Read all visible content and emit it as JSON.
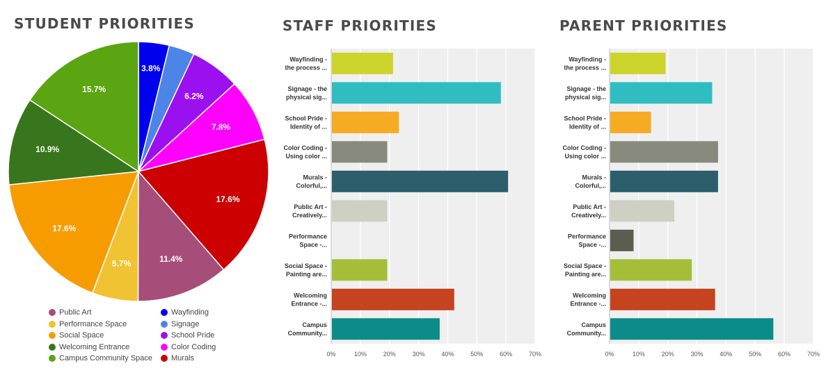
{
  "titles": {
    "student": "STUDENT PRIORITIES",
    "staff": "STAFF PRIORITIES",
    "parent": "PARENT PRIORITIES"
  },
  "chart_data": [
    {
      "type": "pie",
      "title": "STUDENT PRIORITIES",
      "slices": [
        {
          "name": "Wayfinding",
          "value": 3.8,
          "label": "3.8%",
          "color": "#0000ee"
        },
        {
          "name": "Signage",
          "value": 3.2,
          "label": "",
          "color": "#4d84e8"
        },
        {
          "name": "School Pride",
          "value": 6.2,
          "label": "6.2%",
          "color": "#9b10ef"
        },
        {
          "name": "Color Coding",
          "value": 7.8,
          "label": "7.8%",
          "color": "#ff00ff"
        },
        {
          "name": "Murals",
          "value": 17.6,
          "label": "17.6%",
          "color": "#cc0000"
        },
        {
          "name": "Public Art",
          "value": 11.4,
          "label": "11.4%",
          "color": "#a64d79"
        },
        {
          "name": "Performance Space",
          "value": 5.7,
          "label": "5.7%",
          "color": "#f1c232"
        },
        {
          "name": "Social Space",
          "value": 17.6,
          "label": "17.6%",
          "color": "#f79c00"
        },
        {
          "name": "Welcoming Entrance",
          "value": 10.9,
          "label": "10.9%",
          "color": "#38761d"
        },
        {
          "name": "Campus Community Space",
          "value": 15.7,
          "label": "15.7%",
          "color": "#5aa511"
        }
      ],
      "legend": [
        [
          "Public Art",
          "Performance Space",
          "Social Space",
          "Welcoming Entrance",
          "Campus Community Space"
        ],
        [
          "Wayfinding",
          "Signage",
          "School Pride",
          "Color Coding",
          "Murals"
        ]
      ],
      "legend_position": "bottom"
    },
    {
      "type": "bar",
      "orientation": "horizontal",
      "title": "STAFF PRIORITIES",
      "categories": [
        [
          "Wayfinding -",
          "the process ..."
        ],
        [
          "Signage - the",
          "physical sig..."
        ],
        [
          "School Pride -",
          "Identity of ..."
        ],
        [
          "Color Coding -",
          "Using color ..."
        ],
        [
          "Murals -",
          "Colorful,..."
        ],
        [
          "Public Art -",
          "Creatively..."
        ],
        [
          "Performance",
          "Space -..."
        ],
        [
          "Social Space -",
          "Painting are..."
        ],
        [
          "Welcoming",
          "Entrance -..."
        ],
        [
          "Campus",
          "Community..."
        ]
      ],
      "values": [
        21,
        58,
        23,
        19,
        60.5,
        19,
        0,
        19,
        42,
        37
      ],
      "colors": [
        "#ccd42c",
        "#30bdc0",
        "#f5ab22",
        "#888a7d",
        "#2c5e6c",
        "#cfd0c4",
        "#5a5c4e",
        "#a5be3a",
        "#c5431f",
        "#0c8c89"
      ],
      "xlim": [
        0,
        70
      ],
      "xticks": [
        "0%",
        "10%",
        "20%",
        "30%",
        "40%",
        "50%",
        "60%",
        "70%"
      ],
      "grid": true
    },
    {
      "type": "bar",
      "orientation": "horizontal",
      "title": "PARENT PRIORITIES",
      "categories": [
        [
          "Wayfinding -",
          "the process ..."
        ],
        [
          "Signage - the",
          "physical sig..."
        ],
        [
          "School Pride -",
          "Identity of ..."
        ],
        [
          "Color Coding -",
          "Using color ..."
        ],
        [
          "Murals -",
          "Colorful,..."
        ],
        [
          "Public Art -",
          "Creatively..."
        ],
        [
          "Performance",
          "Space -..."
        ],
        [
          "Social Space -",
          "Painting are..."
        ],
        [
          "Welcoming",
          "Entrance -..."
        ],
        [
          "Campus",
          "Community..."
        ]
      ],
      "values": [
        19,
        35,
        14,
        37,
        37,
        22,
        8,
        28,
        36,
        56
      ],
      "colors": [
        "#ccd42c",
        "#30bdc0",
        "#f5ab22",
        "#888a7d",
        "#2c5e6c",
        "#cfd0c4",
        "#5a5c4e",
        "#a5be3a",
        "#c5431f",
        "#0c8c89"
      ],
      "xlim": [
        0,
        70
      ],
      "xticks": [
        "0%",
        "10%",
        "20%",
        "30%",
        "40%",
        "50%",
        "60%",
        "70%"
      ],
      "grid": true
    }
  ]
}
